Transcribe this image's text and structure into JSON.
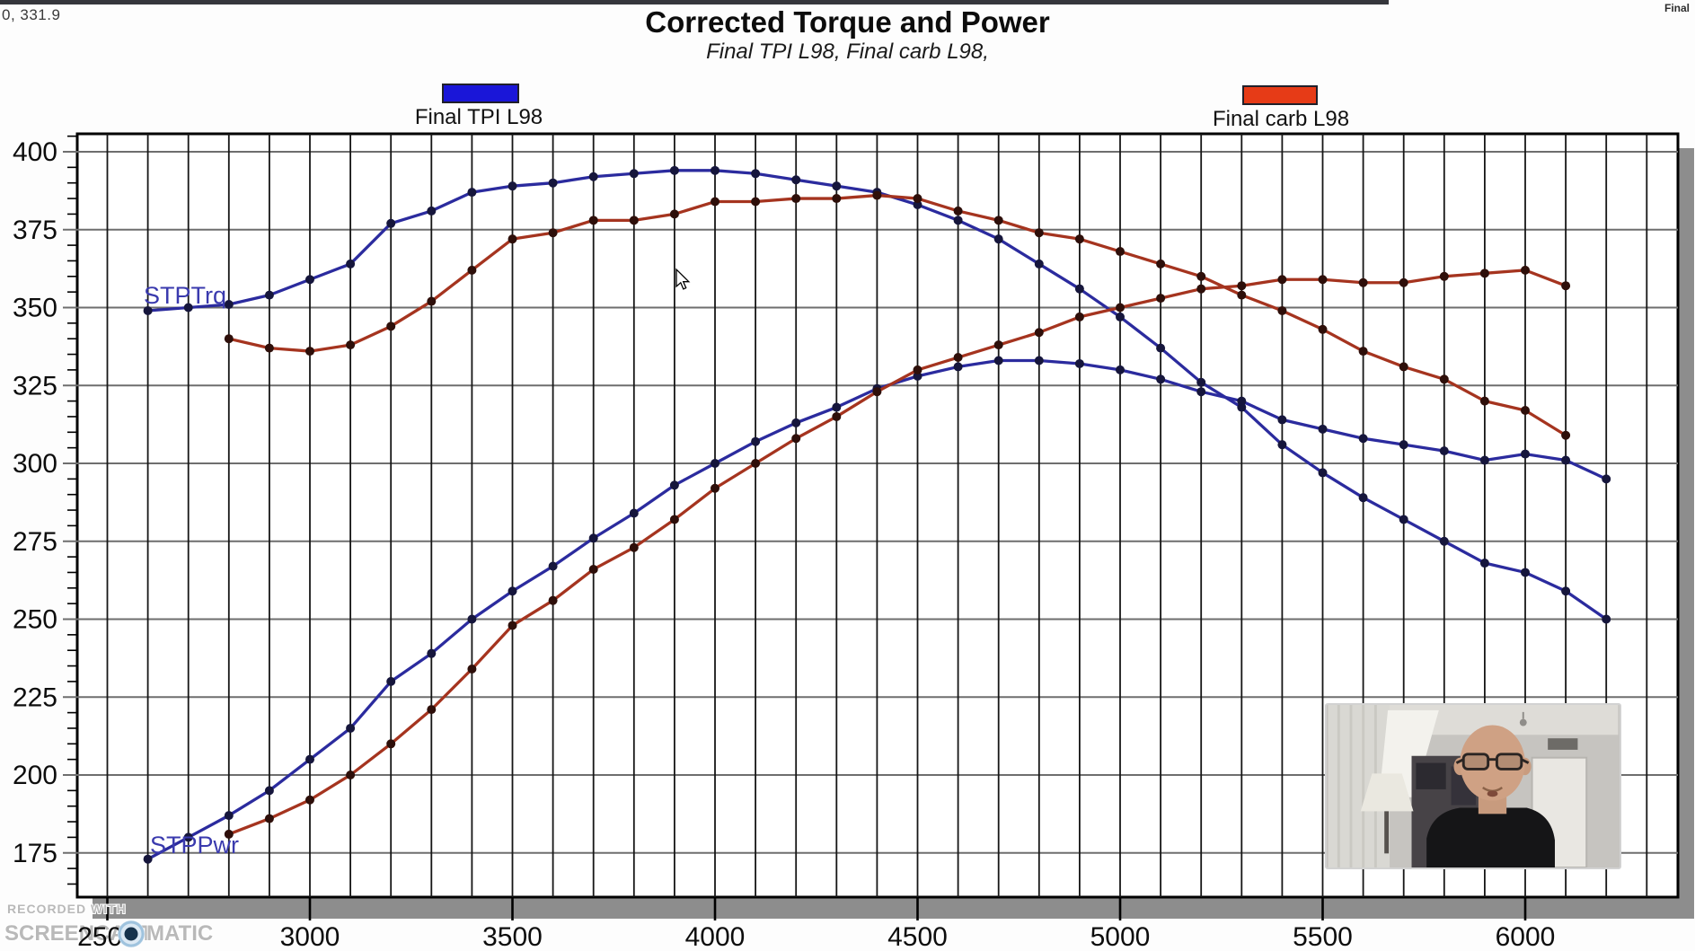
{
  "header": {
    "cursor_readout": "0, 331.9",
    "top_right_text": "Final"
  },
  "chart_data": {
    "type": "line",
    "title": "Corrected Torque and Power",
    "subtitle": "Final TPI L98, Final carb L98,",
    "x_axis": {
      "min": 2420,
      "max": 6380,
      "major_tick_labels": [
        2500,
        3000,
        3500,
        4000,
        4500,
        5000,
        5500,
        6000
      ],
      "gridline_interval": 100
    },
    "y_axis": {
      "min": 161,
      "max": 406,
      "major_tick_labels": [
        175,
        200,
        225,
        250,
        275,
        300,
        325,
        350,
        375,
        400
      ],
      "major_interval": 25,
      "minor_tick_interval": 5
    },
    "grid": true,
    "legend": [
      {
        "label": "Final TPI L98",
        "color": "#1a16d8"
      },
      {
        "label": "Final carb L98",
        "color": "#e63b17"
      }
    ],
    "curve_labels": [
      {
        "text": "STPTrq"
      },
      {
        "text": "STPPwr"
      }
    ],
    "series": [
      {
        "name": "Final TPI L98 - STPTrq (torque)",
        "color": "#2b2b9e",
        "marker_color": "#16163c",
        "x_start": 2600,
        "x_step": 100,
        "values": [
          349,
          350,
          351,
          354,
          359,
          364,
          377,
          381,
          387,
          389,
          390,
          392,
          393,
          394,
          394,
          393,
          391,
          389,
          387,
          383,
          378,
          372,
          364,
          356,
          347,
          337,
          326,
          318,
          306,
          297,
          289,
          282,
          275,
          268,
          265,
          259,
          250
        ]
      },
      {
        "name": "Final TPI L98 - STPPwr (power)",
        "color": "#2b2b9e",
        "marker_color": "#16163c",
        "x_start": 2600,
        "x_step": 100,
        "values": [
          173,
          180,
          187,
          195,
          205,
          215,
          230,
          239,
          250,
          259,
          267,
          276,
          284,
          293,
          300,
          307,
          313,
          318,
          324,
          328,
          331,
          333,
          333,
          332,
          330,
          327,
          323,
          320,
          314,
          311,
          308,
          306,
          304,
          301,
          303,
          301,
          295
        ]
      },
      {
        "name": "Final carb L98 - STPTrq (torque)",
        "color": "#a5341f",
        "marker_color": "#2e0f0a",
        "x_start": 2800,
        "x_step": 100,
        "values": [
          340,
          337,
          336,
          338,
          344,
          352,
          362,
          372,
          374,
          378,
          378,
          380,
          384,
          384,
          385,
          385,
          386,
          385,
          381,
          378,
          374,
          372,
          368,
          364,
          360,
          354,
          349,
          343,
          336,
          331,
          327,
          320,
          317,
          309
        ]
      },
      {
        "name": "Final carb L98 - STPPwr (power)",
        "color": "#a5341f",
        "marker_color": "#2e0f0a",
        "x_start": 2800,
        "x_step": 100,
        "values": [
          181,
          186,
          192,
          200,
          210,
          221,
          234,
          248,
          256,
          266,
          273,
          282,
          292,
          300,
          308,
          315,
          323,
          330,
          334,
          338,
          342,
          347,
          350,
          353,
          356,
          357,
          359,
          359,
          358,
          358,
          360,
          361,
          362,
          357
        ]
      }
    ]
  },
  "watermark": {
    "line1": "RECORDED WITH",
    "line2_left": "SCREENCAST",
    "line2_right": "MATIC"
  }
}
